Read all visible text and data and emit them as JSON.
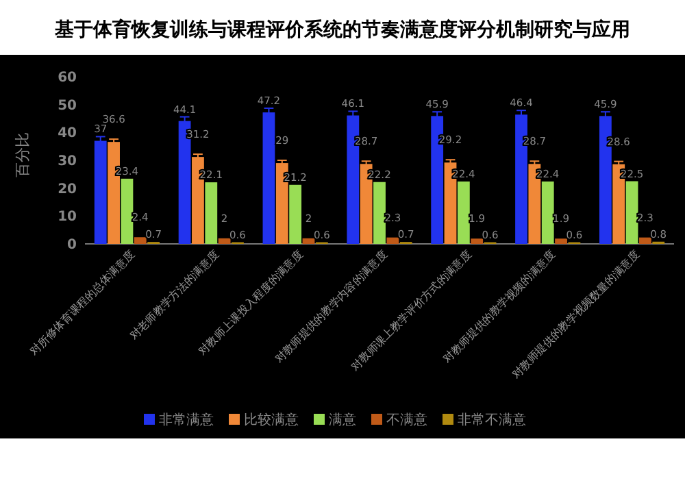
{
  "chart_data": {
    "type": "bar",
    "title": "基于体育恢复训练与课程评价系统的节奏满意度评分机制研究与应用",
    "ylabel": "百分比",
    "categories": [
      "对所修体育课程的总体满意度",
      "对老师教学方法的满意度",
      "对教师上课投入程度的满意度",
      "对教师提供的教学内容的满意度",
      "对教师课上教学评价方式的满意度",
      "对教师提供的教学视频的满意度",
      "对教师提供的教学视频数量的满意度"
    ],
    "series": [
      {
        "name": "非常满意",
        "color": "#2233ee",
        "values": [
          37,
          44.1,
          47.2,
          46.1,
          45.9,
          46.4,
          45.9
        ],
        "errors": [
          1.5,
          1.5,
          1.5,
          1.5,
          1.5,
          1.5,
          1.5
        ]
      },
      {
        "name": "比较满意",
        "color": "#f08838",
        "values": [
          36.6,
          31.2,
          29,
          28.7,
          29.2,
          28.7,
          28.6
        ],
        "errors": [
          1,
          1,
          1,
          1,
          1,
          1,
          1
        ]
      },
      {
        "name": "满意",
        "color": "#99dd55",
        "values": [
          23.4,
          22.1,
          21.2,
          22.2,
          22.4,
          22.4,
          22.5
        ]
      },
      {
        "name": "不满意",
        "color": "#c05a18",
        "values": [
          2.4,
          2,
          2,
          2.3,
          1.9,
          1.9,
          2.3
        ]
      },
      {
        "name": "非常不满意",
        "color": "#b08a10",
        "values": [
          0.7,
          0.6,
          0.6,
          0.7,
          0.6,
          0.6,
          0.8
        ]
      }
    ],
    "ylim": [
      0,
      60
    ],
    "yticks": [
      0,
      10,
      20,
      30,
      40,
      50,
      60
    ],
    "data_labels": true,
    "legend": "bottom",
    "grid": false
  }
}
